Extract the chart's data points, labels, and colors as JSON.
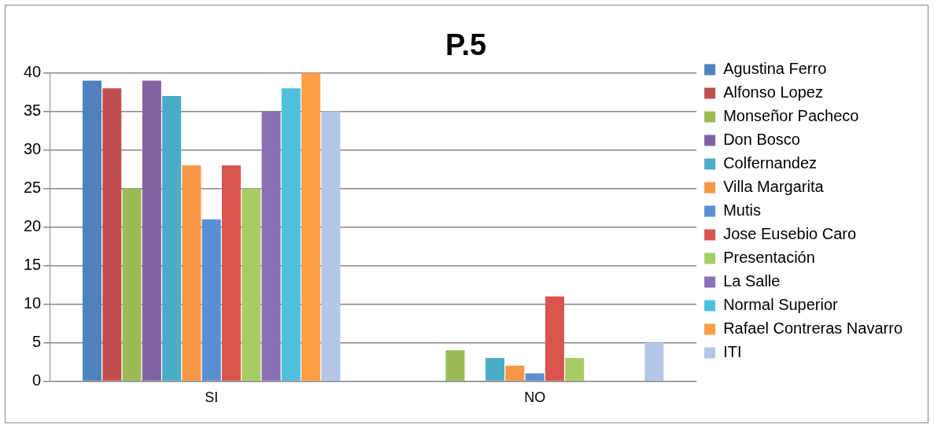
{
  "chart_data": {
    "type": "bar",
    "title": "P.5",
    "categories": [
      "SI",
      "NO"
    ],
    "series": [
      {
        "name": "Agustina Ferro",
        "color": "#4f81bd",
        "values": [
          39,
          0
        ]
      },
      {
        "name": "Alfonso Lopez",
        "color": "#c0504d",
        "values": [
          38,
          0
        ]
      },
      {
        "name": "Monseñor Pacheco",
        "color": "#9bbb59",
        "values": [
          25,
          4
        ]
      },
      {
        "name": "Don Bosco",
        "color": "#8064a2",
        "values": [
          39,
          0
        ]
      },
      {
        "name": "Colfernandez",
        "color": "#4bacc6",
        "values": [
          37,
          3
        ]
      },
      {
        "name": "Villa Margarita",
        "color": "#f79646",
        "values": [
          28,
          2
        ]
      },
      {
        "name": "Mutis",
        "color": "#5b8fd4",
        "values": [
          21,
          1
        ]
      },
      {
        "name": "Jose Eusebio Caro",
        "color": "#d9534f",
        "values": [
          28,
          11
        ]
      },
      {
        "name": "Presentación",
        "color": "#a8cc63",
        "values": [
          25,
          3
        ]
      },
      {
        "name": "La Salle",
        "color": "#8b6fb3",
        "values": [
          35,
          0
        ]
      },
      {
        "name": "Normal Superior",
        "color": "#4fc0dc",
        "values": [
          38,
          0
        ]
      },
      {
        "name": "Rafael Contreras Navarro",
        "color": "#ff9e45",
        "values": [
          40,
          0
        ]
      },
      {
        "name": "ITI",
        "color": "#b3c6e7",
        "values": [
          35,
          5
        ]
      }
    ],
    "ylim": [
      0,
      40
    ],
    "yticks": [
      0,
      5,
      10,
      15,
      20,
      25,
      30,
      35,
      40
    ],
    "grid": "y",
    "legend": "right"
  }
}
